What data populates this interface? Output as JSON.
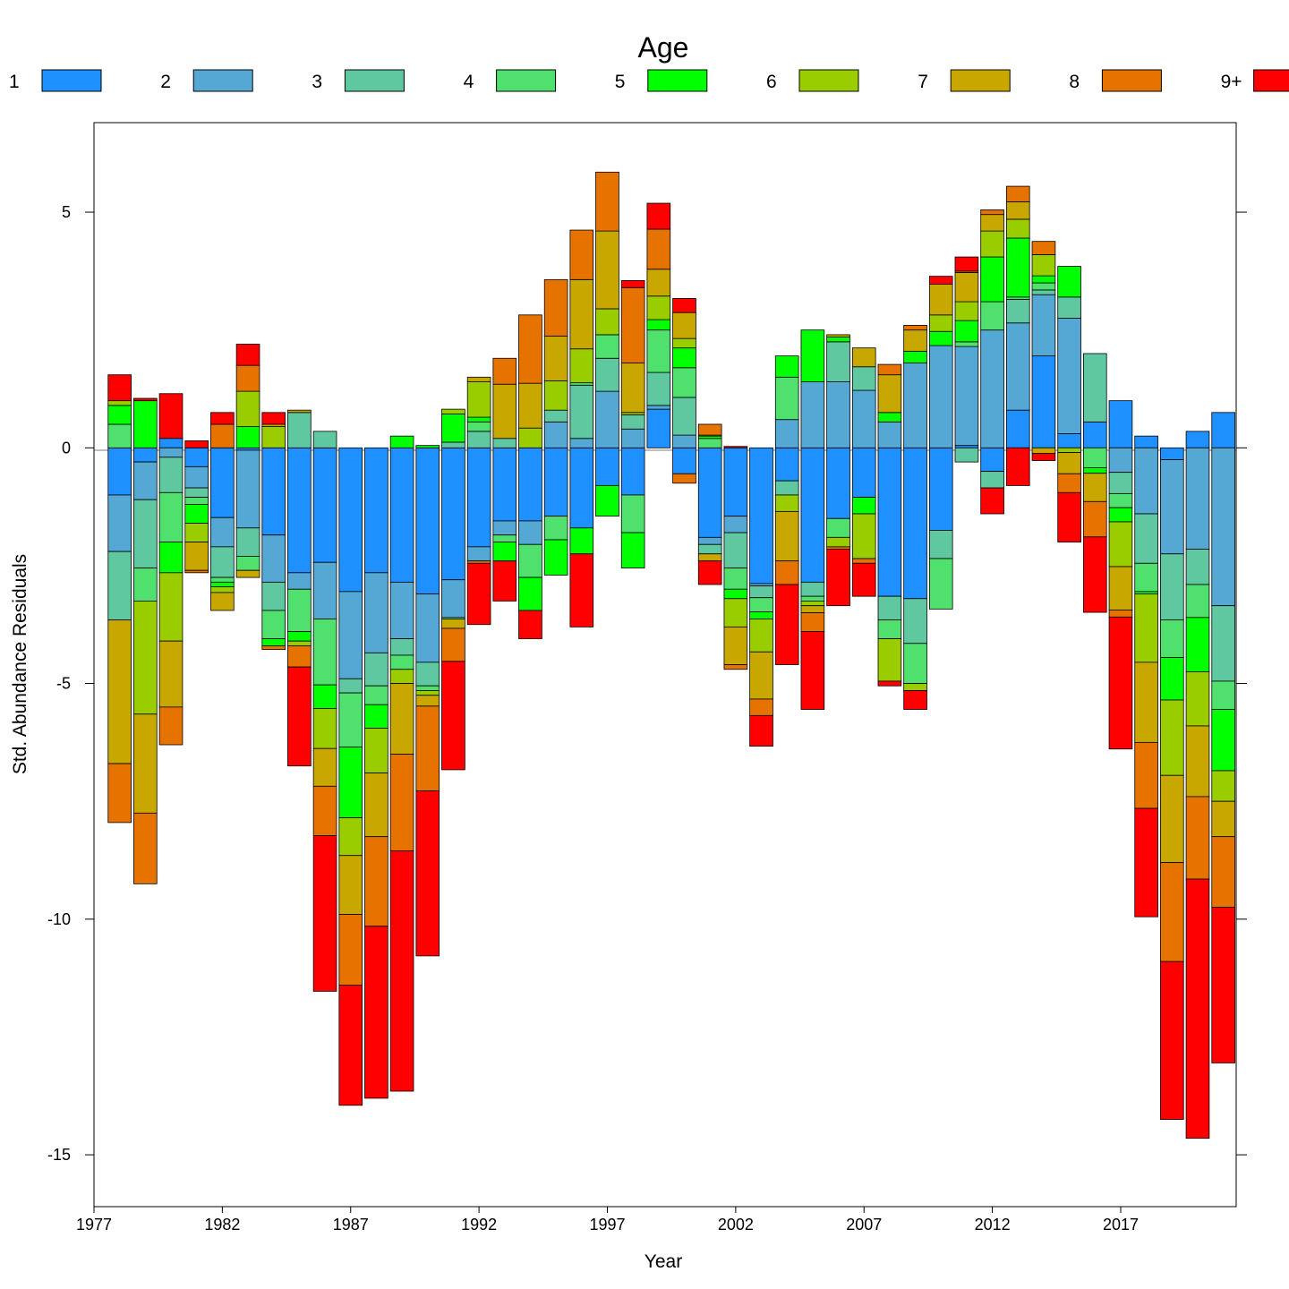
{
  "chart_data": {
    "type": "bar",
    "subtype": "stacked-diverging",
    "title": "",
    "legend_title": "Age",
    "legend_position": "top",
    "xlabel": "Year",
    "ylabel": "Std. Abundance Residuals",
    "x_ticks": [
      "1977",
      "1982",
      "1987",
      "1992",
      "1997",
      "2002",
      "2007",
      "2012",
      "2017"
    ],
    "y_ticks": [
      5,
      0,
      -5,
      -10,
      -15
    ],
    "xlim": [
      1977,
      2021.5
    ],
    "ylim": [
      -16.1,
      6.9
    ],
    "grid": false,
    "series": [
      {
        "name": "1",
        "color": "#1E90FF"
      },
      {
        "name": "2",
        "color": "#56A8D4"
      },
      {
        "name": "3",
        "color": "#5FC8A0"
      },
      {
        "name": "4",
        "color": "#50E06E"
      },
      {
        "name": "5",
        "color": "#00FF00"
      },
      {
        "name": "6",
        "color": "#9ACD00"
      },
      {
        "name": "7",
        "color": "#C8A800"
      },
      {
        "name": "8",
        "color": "#E67300"
      },
      {
        "name": "9+",
        "color": "#FF0000"
      }
    ],
    "years": [
      1978,
      1979,
      1980,
      1981,
      1982,
      1983,
      1984,
      1985,
      1986,
      1987,
      1988,
      1989,
      1990,
      1991,
      1992,
      1993,
      1994,
      1995,
      1996,
      1997,
      1998,
      1999,
      2000,
      2001,
      2002,
      2003,
      2004,
      2005,
      2006,
      2007,
      2008,
      2009,
      2010,
      2011,
      2012,
      2013,
      2014,
      2015,
      2016,
      2017,
      2018,
      2019,
      2020,
      2021
    ],
    "values_by_year": [
      [
        -1.0,
        -1.2,
        -1.45,
        0.5,
        0.4,
        0.1,
        -3.05,
        -1.25,
        0.55
      ],
      [
        -0.3,
        -0.8,
        -1.45,
        -0.7,
        1.0,
        -2.4,
        -2.1,
        -1.5,
        0.05
      ],
      [
        0.2,
        -0.2,
        -0.75,
        -1.05,
        -0.65,
        -1.45,
        -1.4,
        -0.8,
        0.95
      ],
      [
        -0.4,
        -0.45,
        -0.2,
        -0.15,
        -0.4,
        -0.4,
        -0.6,
        -0.05,
        0.15
      ],
      [
        -1.48,
        -0.62,
        -0.65,
        -0.1,
        -0.1,
        -0.12,
        -0.38,
        0.5,
        0.25
      ],
      [
        -0.05,
        -1.65,
        -0.6,
        -0.3,
        0.45,
        0.75,
        -0.15,
        0.55,
        0.45
      ],
      [
        -1.85,
        -1.0,
        -0.6,
        -0.6,
        -0.15,
        0.45,
        0.05,
        -0.08,
        0.25
      ],
      [
        -2.65,
        -0.35,
        0.75,
        -0.9,
        -0.2,
        -0.1,
        0.05,
        -0.45,
        -2.1
      ],
      [
        -2.43,
        -1.2,
        0.35,
        -1.4,
        -0.5,
        -0.85,
        -0.8,
        -1.05,
        -3.3
      ],
      [
        -3.05,
        -1.85,
        -0.3,
        -1.15,
        -1.5,
        -0.8,
        -1.25,
        -1.5,
        -2.55
      ],
      [
        -2.65,
        -1.7,
        -0.7,
        -0.4,
        -0.5,
        -0.95,
        -1.35,
        -1.9,
        -3.65
      ],
      [
        -2.85,
        -1.2,
        -0.35,
        -0.3,
        0.25,
        -0.3,
        -1.5,
        -2.05,
        -5.1
      ],
      [
        -3.1,
        -1.45,
        -0.5,
        -0.1,
        0.05,
        -0.1,
        -0.23,
        -1.8,
        -3.5
      ],
      [
        -2.8,
        -0.8,
        0.12,
        -0.03,
        0.6,
        0.1,
        -0.2,
        -0.7,
        -2.3
      ],
      [
        -2.1,
        -0.3,
        0.35,
        0.2,
        0.1,
        0.75,
        0.1,
        -0.05,
        -1.3
      ],
      [
        -1.55,
        -0.3,
        0.2,
        -0.15,
        -0.4,
        0.0,
        1.15,
        0.55,
        -0.85
      ],
      [
        -1.55,
        -0.5,
        0.0,
        -0.7,
        -0.7,
        0.42,
        0.95,
        1.45,
        -0.6
      ],
      [
        -1.45,
        0.55,
        0.25,
        -0.5,
        -0.75,
        0.62,
        0.95,
        1.2,
        0.0
      ],
      [
        -1.7,
        0.2,
        1.13,
        0.05,
        -0.55,
        0.72,
        1.47,
        1.05,
        -1.55
      ],
      [
        -0.8,
        1.2,
        0.7,
        0.5,
        -0.65,
        0.55,
        1.65,
        1.25,
        0.0
      ],
      [
        -1.0,
        0.4,
        0.3,
        -0.8,
        -0.75,
        0.05,
        1.05,
        1.6,
        0.15
      ],
      [
        0.82,
        0.08,
        0.7,
        0.9,
        0.22,
        0.5,
        0.57,
        0.85,
        0.55
      ],
      [
        -0.55,
        0.27,
        0.8,
        0.63,
        0.42,
        0.2,
        0.55,
        -0.2,
        0.3
      ],
      [
        -1.9,
        -0.15,
        -0.2,
        0.2,
        0.05,
        0.02,
        -0.15,
        0.23,
        -0.5
      ],
      [
        -1.45,
        -0.35,
        -0.75,
        -0.45,
        -0.2,
        -0.6,
        -0.8,
        -0.1,
        0.03
      ],
      [
        -2.88,
        -0.05,
        -0.25,
        -0.3,
        -0.15,
        -0.7,
        -1.0,
        -0.35,
        -0.65
      ],
      [
        -0.7,
        0.6,
        -0.3,
        0.9,
        0.45,
        -0.35,
        -1.05,
        -0.5,
        -1.7
      ],
      [
        -2.85,
        1.4,
        -0.3,
        -0.1,
        1.1,
        -0.1,
        -0.15,
        -0.4,
        -1.65
      ],
      [
        -1.5,
        1.4,
        0.85,
        -0.4,
        0.1,
        -0.2,
        0.05,
        -0.05,
        -1.2
      ],
      [
        -1.05,
        1.22,
        0.5,
        0.0,
        -0.35,
        -0.95,
        0.4,
        -0.1,
        -0.7
      ],
      [
        -3.15,
        0.55,
        -0.5,
        -0.4,
        0.2,
        -0.9,
        0.8,
        0.22,
        -0.1
      ],
      [
        -3.2,
        1.8,
        -0.95,
        -0.85,
        0.25,
        -0.15,
        0.45,
        0.1,
        -0.4
      ],
      [
        -1.75,
        2.17,
        -0.6,
        -1.07,
        0.3,
        0.35,
        0.65,
        0.0,
        0.17
      ],
      [
        0.05,
        2.1,
        -0.3,
        0.1,
        0.45,
        0.4,
        0.62,
        0.03,
        0.3
      ],
      [
        -0.5,
        2.5,
        -0.35,
        0.6,
        0.95,
        0.55,
        0.35,
        0.1,
        -0.55
      ],
      [
        0.8,
        1.85,
        0.5,
        0.05,
        1.25,
        0.4,
        0.37,
        0.33,
        -0.8
      ],
      [
        1.95,
        1.3,
        0.1,
        0.15,
        0.15,
        0.45,
        -0.12,
        0.28,
        -0.15
      ],
      [
        0.3,
        2.45,
        0.45,
        0.0,
        0.65,
        -0.1,
        -0.45,
        -0.4,
        -1.05
      ],
      [
        0.55,
        0.0,
        1.45,
        -0.42,
        -0.12,
        0.0,
        -0.6,
        -0.75,
        -1.6
      ],
      [
        1.0,
        -0.52,
        -0.45,
        -0.3,
        -0.3,
        -0.95,
        -0.92,
        -0.15,
        -2.8
      ],
      [
        0.25,
        -1.4,
        -1.05,
        -0.6,
        -0.05,
        -1.45,
        -1.7,
        -1.4,
        -2.3
      ],
      [
        -0.25,
        -2.0,
        -1.4,
        -0.8,
        -0.9,
        -1.6,
        -1.85,
        -2.1,
        -3.35
      ],
      [
        0.35,
        -2.15,
        -0.75,
        -0.7,
        -1.15,
        -1.15,
        -1.5,
        -1.75,
        -5.5
      ],
      [
        0.75,
        -3.35,
        -1.6,
        -0.6,
        -1.3,
        -0.65,
        -0.75,
        -1.5,
        -3.3
      ]
    ]
  }
}
